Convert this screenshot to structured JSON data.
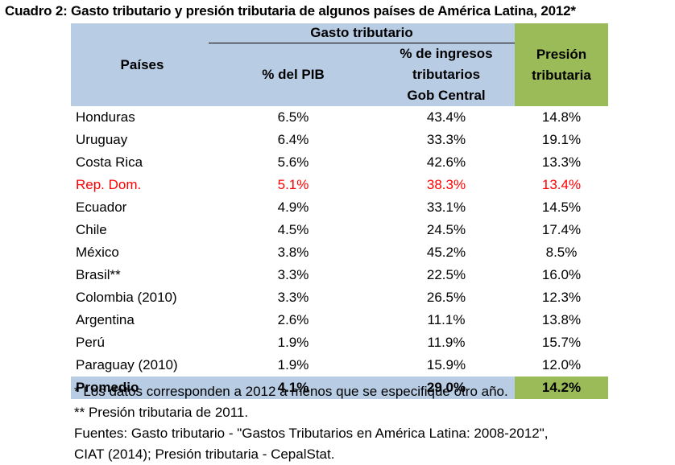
{
  "title": "Cuadro 2: Gasto tributario y presión tributaria de algunos países de América Latina, 2012*",
  "headers": {
    "countries": "Países",
    "group": "Gasto tributario",
    "pib": "% del PIB",
    "ingresos_line1": "% de ingresos tributarios",
    "ingresos_line2": "Gob Central",
    "presion_line1": "Presión",
    "presion_line2": "tributaria"
  },
  "rows": [
    {
      "country": "Honduras",
      "pib": "6.5%",
      "ingresos": "43.4%",
      "presion": "14.8%"
    },
    {
      "country": "Uruguay",
      "pib": "6.4%",
      "ingresos": "33.3%",
      "presion": "19.1%"
    },
    {
      "country": "Costa Rica",
      "pib": "5.6%",
      "ingresos": "42.6%",
      "presion": "13.3%"
    },
    {
      "country": "Rep. Dom.",
      "pib": "5.1%",
      "ingresos": "38.3%",
      "presion": "13.4%"
    },
    {
      "country": "Ecuador",
      "pib": "4.9%",
      "ingresos": "33.1%",
      "presion": "14.5%"
    },
    {
      "country": "Chile",
      "pib": "4.5%",
      "ingresos": "24.5%",
      "presion": "17.4%"
    },
    {
      "country": "México",
      "pib": "3.8%",
      "ingresos": "45.2%",
      "presion": "8.5%"
    },
    {
      "country": "Brasil**",
      "pib": "3.3%",
      "ingresos": "22.5%",
      "presion": "16.0%"
    },
    {
      "country": "Colombia (2010)",
      "pib": "3.3%",
      "ingresos": "26.5%",
      "presion": "12.3%"
    },
    {
      "country": "Argentina",
      "pib": "2.6%",
      "ingresos": "11.1%",
      "presion": "13.8%"
    },
    {
      "country": "Perú",
      "pib": "1.9%",
      "ingresos": "11.9%",
      "presion": "15.7%"
    },
    {
      "country": "Paraguay (2010)",
      "pib": "1.9%",
      "ingresos": "15.9%",
      "presion": "12.0%"
    }
  ],
  "highlight_color": "#ff0000",
  "average": {
    "country": "Promedio",
    "pib": "4.1%",
    "ingresos": "29.0%",
    "presion": "14.2%"
  },
  "notes": [
    "* Los datos corresponden a 2012 a menos que se especifique otro año.",
    "** Presión tributaria de 2011.",
    "Fuentes: Gasto tributario - \"Gastos Tributarios en América Latina: 2008-2012\",",
    "CIAT (2014); Presión tributaria - CepalStat."
  ]
}
